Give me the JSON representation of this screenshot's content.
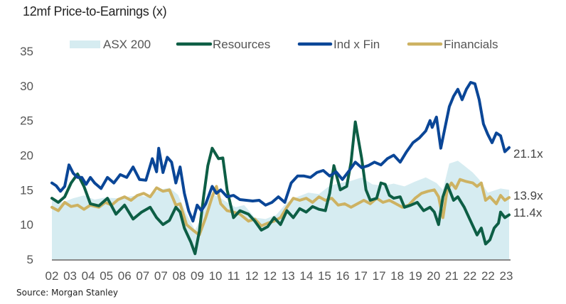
{
  "title": "12mf Price-to-Earnings (x)",
  "source": "Source: Morgan Stanley",
  "colors": {
    "asx200": "#d6ecf1",
    "resources": "#0d5e45",
    "ind_x_fin": "#0a4697",
    "financials": "#cdb262",
    "axis": "#888888",
    "text": "#555555"
  },
  "chart_data": {
    "type": "line",
    "title": "12mf Price-to-Earnings (x)",
    "xlabel": "",
    "ylabel": "",
    "ylim": [
      5,
      35
    ],
    "yticks": [
      5,
      10,
      15,
      20,
      25,
      30,
      35
    ],
    "xlim": [
      2002.0,
      2023.4
    ],
    "xtick_labels": [
      "02",
      "03",
      "04",
      "05",
      "06",
      "07",
      "07",
      "08",
      "09",
      "10",
      "11",
      "12",
      "12",
      "13",
      "14",
      "15",
      "16",
      "17",
      "17",
      "18",
      "19",
      "20",
      "21",
      "22",
      "22",
      "23"
    ],
    "grid": false,
    "legend": {
      "placement": "top",
      "entries": [
        "ASX 200",
        "Resources",
        "Ind x Fin",
        "Financials"
      ]
    },
    "end_labels": {
      "ind_x_fin": "21.1x",
      "financials": "13.9x",
      "resources": "11.4x"
    },
    "series": [
      {
        "name": "ASX 200",
        "key": "asx200",
        "style": "area",
        "points": [
          [
            2002.0,
            13.5
          ],
          [
            2002.5,
            13.2
          ],
          [
            2003.0,
            13.8
          ],
          [
            2003.5,
            14.2
          ],
          [
            2004.0,
            13.6
          ],
          [
            2004.5,
            13.9
          ],
          [
            2005.0,
            13.8
          ],
          [
            2005.5,
            14.0
          ],
          [
            2006.0,
            14.2
          ],
          [
            2006.5,
            14.0
          ],
          [
            2007.0,
            15.0
          ],
          [
            2007.5,
            15.3
          ],
          [
            2007.9,
            14.3
          ],
          [
            2008.3,
            11.5
          ],
          [
            2008.7,
            9.2
          ],
          [
            2009.0,
            11.0
          ],
          [
            2009.4,
            14.5
          ],
          [
            2009.8,
            14.0
          ],
          [
            2010.2,
            13.2
          ],
          [
            2010.6,
            12.5
          ],
          [
            2011.0,
            12.8
          ],
          [
            2011.5,
            11.0
          ],
          [
            2012.0,
            10.8
          ],
          [
            2012.5,
            11.4
          ],
          [
            2013.0,
            13.2
          ],
          [
            2013.5,
            14.0
          ],
          [
            2014.0,
            14.6
          ],
          [
            2014.5,
            14.4
          ],
          [
            2015.0,
            15.6
          ],
          [
            2015.5,
            16.0
          ],
          [
            2016.0,
            16.3
          ],
          [
            2016.5,
            16.8
          ],
          [
            2017.0,
            15.8
          ],
          [
            2017.5,
            15.6
          ],
          [
            2018.0,
            15.9
          ],
          [
            2018.5,
            15.5
          ],
          [
            2019.0,
            16.2
          ],
          [
            2019.5,
            16.8
          ],
          [
            2020.0,
            16.0
          ],
          [
            2020.3,
            15.0
          ],
          [
            2020.6,
            18.8
          ],
          [
            2021.0,
            19.2
          ],
          [
            2021.3,
            18.5
          ],
          [
            2021.7,
            17.5
          ],
          [
            2022.0,
            16.5
          ],
          [
            2022.4,
            14.6
          ],
          [
            2022.8,
            15.0
          ],
          [
            2023.0,
            15.2
          ],
          [
            2023.4,
            15.0
          ]
        ]
      },
      {
        "name": "Resources",
        "key": "resources",
        "style": "line",
        "points": [
          [
            2002.0,
            13.8
          ],
          [
            2002.3,
            13.2
          ],
          [
            2002.6,
            14.0
          ],
          [
            2002.9,
            16.0
          ],
          [
            2003.2,
            17.3
          ],
          [
            2003.5,
            15.5
          ],
          [
            2003.8,
            13.0
          ],
          [
            2004.2,
            12.7
          ],
          [
            2004.6,
            13.8
          ],
          [
            2005.0,
            11.5
          ],
          [
            2005.4,
            12.8
          ],
          [
            2005.8,
            10.8
          ],
          [
            2006.2,
            11.8
          ],
          [
            2006.6,
            12.5
          ],
          [
            2006.9,
            11.0
          ],
          [
            2007.2,
            10.0
          ],
          [
            2007.5,
            10.6
          ],
          [
            2007.8,
            12.5
          ],
          [
            2008.0,
            11.8
          ],
          [
            2008.2,
            9.5
          ],
          [
            2008.5,
            7.5
          ],
          [
            2008.7,
            5.8
          ],
          [
            2008.9,
            9.0
          ],
          [
            2009.1,
            14.0
          ],
          [
            2009.3,
            18.5
          ],
          [
            2009.5,
            21.0
          ],
          [
            2009.8,
            19.5
          ],
          [
            2010.0,
            19.6
          ],
          [
            2010.2,
            15.0
          ],
          [
            2010.5,
            11.0
          ],
          [
            2010.8,
            12.0
          ],
          [
            2011.2,
            11.5
          ],
          [
            2011.5,
            10.5
          ],
          [
            2011.8,
            9.2
          ],
          [
            2012.1,
            9.7
          ],
          [
            2012.4,
            11.0
          ],
          [
            2012.7,
            10.0
          ],
          [
            2013.0,
            12.0
          ],
          [
            2013.3,
            11.0
          ],
          [
            2013.6,
            12.3
          ],
          [
            2013.9,
            11.8
          ],
          [
            2014.2,
            12.6
          ],
          [
            2014.5,
            12.2
          ],
          [
            2014.8,
            12.0
          ],
          [
            2015.0,
            14.5
          ],
          [
            2015.2,
            18.5
          ],
          [
            2015.5,
            15.0
          ],
          [
            2015.8,
            15.5
          ],
          [
            2016.0,
            19.0
          ],
          [
            2016.2,
            24.8
          ],
          [
            2016.5,
            19.5
          ],
          [
            2016.7,
            15.0
          ],
          [
            2016.9,
            13.5
          ],
          [
            2017.2,
            13.8
          ],
          [
            2017.4,
            16.0
          ],
          [
            2017.6,
            15.8
          ],
          [
            2017.8,
            14.2
          ],
          [
            2018.0,
            13.8
          ],
          [
            2018.3,
            14.0
          ],
          [
            2018.5,
            12.5
          ],
          [
            2018.8,
            12.8
          ],
          [
            2019.1,
            13.2
          ],
          [
            2019.4,
            12.0
          ],
          [
            2019.7,
            12.5
          ],
          [
            2019.9,
            11.8
          ],
          [
            2020.1,
            10.0
          ],
          [
            2020.3,
            14.0
          ],
          [
            2020.5,
            15.8
          ],
          [
            2020.8,
            13.5
          ],
          [
            2021.0,
            14.0
          ],
          [
            2021.3,
            12.5
          ],
          [
            2021.6,
            10.5
          ],
          [
            2021.9,
            8.5
          ],
          [
            2022.1,
            9.5
          ],
          [
            2022.3,
            7.2
          ],
          [
            2022.5,
            7.8
          ],
          [
            2022.7,
            9.5
          ],
          [
            2022.9,
            10.2
          ],
          [
            2023.0,
            11.8
          ],
          [
            2023.2,
            11.0
          ],
          [
            2023.4,
            11.4
          ]
        ]
      },
      {
        "name": "Ind x Fin",
        "key": "ind_x_fin",
        "style": "line",
        "points": [
          [
            2002.0,
            16.0
          ],
          [
            2002.2,
            15.6
          ],
          [
            2002.4,
            14.8
          ],
          [
            2002.6,
            15.5
          ],
          [
            2002.8,
            18.6
          ],
          [
            2003.0,
            17.4
          ],
          [
            2003.2,
            16.8
          ],
          [
            2003.4,
            16.8
          ],
          [
            2003.6,
            15.8
          ],
          [
            2003.8,
            16.8
          ],
          [
            2004.0,
            16.0
          ],
          [
            2004.3,
            15.2
          ],
          [
            2004.6,
            16.8
          ],
          [
            2004.9,
            16.0
          ],
          [
            2005.2,
            17.2
          ],
          [
            2005.5,
            16.8
          ],
          [
            2005.8,
            18.3
          ],
          [
            2006.1,
            16.5
          ],
          [
            2006.4,
            16.4
          ],
          [
            2006.7,
            19.5
          ],
          [
            2006.9,
            17.6
          ],
          [
            2007.0,
            21.0
          ],
          [
            2007.2,
            17.5
          ],
          [
            2007.4,
            19.7
          ],
          [
            2007.6,
            19.0
          ],
          [
            2007.8,
            16.0
          ],
          [
            2008.0,
            18.3
          ],
          [
            2008.2,
            14.5
          ],
          [
            2008.4,
            12.0
          ],
          [
            2008.6,
            10.5
          ],
          [
            2008.8,
            12.8
          ],
          [
            2009.0,
            12.0
          ],
          [
            2009.2,
            13.0
          ],
          [
            2009.5,
            15.5
          ],
          [
            2009.7,
            14.5
          ],
          [
            2009.9,
            15.0
          ],
          [
            2010.2,
            14.0
          ],
          [
            2010.5,
            14.2
          ],
          [
            2010.8,
            13.6
          ],
          [
            2011.1,
            13.5
          ],
          [
            2011.4,
            13.4
          ],
          [
            2011.7,
            13.5
          ],
          [
            2012.0,
            12.8
          ],
          [
            2012.3,
            13.2
          ],
          [
            2012.6,
            14.0
          ],
          [
            2012.9,
            13.2
          ],
          [
            2013.2,
            16.0
          ],
          [
            2013.5,
            17.0
          ],
          [
            2013.8,
            17.0
          ],
          [
            2014.1,
            16.8
          ],
          [
            2014.4,
            17.5
          ],
          [
            2014.7,
            17.8
          ],
          [
            2015.0,
            17.0
          ],
          [
            2015.3,
            17.6
          ],
          [
            2015.6,
            16.5
          ],
          [
            2015.9,
            17.7
          ],
          [
            2016.2,
            19.0
          ],
          [
            2016.5,
            18.2
          ],
          [
            2016.8,
            18.5
          ],
          [
            2017.1,
            19.0
          ],
          [
            2017.4,
            18.6
          ],
          [
            2017.7,
            19.5
          ],
          [
            2018.0,
            20.0
          ],
          [
            2018.3,
            19.0
          ],
          [
            2018.6,
            20.5
          ],
          [
            2018.9,
            21.8
          ],
          [
            2019.2,
            22.5
          ],
          [
            2019.5,
            23.5
          ],
          [
            2019.7,
            25.0
          ],
          [
            2019.8,
            24.0
          ],
          [
            2020.0,
            25.5
          ],
          [
            2020.2,
            21.0
          ],
          [
            2020.4,
            24.0
          ],
          [
            2020.6,
            27.0
          ],
          [
            2020.8,
            28.5
          ],
          [
            2021.0,
            29.5
          ],
          [
            2021.2,
            28.0
          ],
          [
            2021.4,
            29.5
          ],
          [
            2021.6,
            30.5
          ],
          [
            2021.8,
            30.3
          ],
          [
            2022.0,
            28.0
          ],
          [
            2022.2,
            24.5
          ],
          [
            2022.4,
            23.0
          ],
          [
            2022.6,
            21.8
          ],
          [
            2022.8,
            23.2
          ],
          [
            2023.0,
            22.8
          ],
          [
            2023.2,
            20.5
          ],
          [
            2023.4,
            21.1
          ]
        ]
      },
      {
        "name": "Financials",
        "key": "financials",
        "style": "line",
        "points": [
          [
            2002.0,
            12.5
          ],
          [
            2002.3,
            12.0
          ],
          [
            2002.6,
            13.2
          ],
          [
            2002.9,
            12.6
          ],
          [
            2003.2,
            12.8
          ],
          [
            2003.5,
            12.2
          ],
          [
            2003.8,
            12.8
          ],
          [
            2004.2,
            12.5
          ],
          [
            2004.5,
            13.2
          ],
          [
            2004.8,
            12.8
          ],
          [
            2005.1,
            13.6
          ],
          [
            2005.4,
            14.0
          ],
          [
            2005.7,
            13.5
          ],
          [
            2006.0,
            14.2
          ],
          [
            2006.3,
            14.5
          ],
          [
            2006.6,
            14.0
          ],
          [
            2006.9,
            15.3
          ],
          [
            2007.2,
            14.8
          ],
          [
            2007.5,
            15.0
          ],
          [
            2007.8,
            12.8
          ],
          [
            2008.0,
            13.0
          ],
          [
            2008.3,
            10.0
          ],
          [
            2008.6,
            9.2
          ],
          [
            2008.9,
            8.5
          ],
          [
            2009.2,
            11.0
          ],
          [
            2009.5,
            14.0
          ],
          [
            2009.7,
            15.5
          ],
          [
            2009.9,
            13.0
          ],
          [
            2010.2,
            12.0
          ],
          [
            2010.5,
            11.8
          ],
          [
            2010.8,
            11.5
          ],
          [
            2011.2,
            10.5
          ],
          [
            2011.5,
            10.8
          ],
          [
            2011.8,
            9.8
          ],
          [
            2012.1,
            10.2
          ],
          [
            2012.4,
            10.5
          ],
          [
            2012.7,
            11.0
          ],
          [
            2013.0,
            12.5
          ],
          [
            2013.3,
            13.8
          ],
          [
            2013.6,
            13.5
          ],
          [
            2013.9,
            13.8
          ],
          [
            2014.2,
            13.2
          ],
          [
            2014.5,
            14.0
          ],
          [
            2014.8,
            13.5
          ],
          [
            2015.1,
            13.8
          ],
          [
            2015.4,
            12.8
          ],
          [
            2015.7,
            13.0
          ],
          [
            2016.0,
            12.5
          ],
          [
            2016.3,
            13.0
          ],
          [
            2016.6,
            13.5
          ],
          [
            2016.9,
            13.0
          ],
          [
            2017.2,
            13.8
          ],
          [
            2017.5,
            13.2
          ],
          [
            2017.8,
            13.5
          ],
          [
            2018.1,
            13.0
          ],
          [
            2018.4,
            12.5
          ],
          [
            2018.7,
            12.8
          ],
          [
            2019.0,
            13.8
          ],
          [
            2019.3,
            14.5
          ],
          [
            2019.6,
            14.8
          ],
          [
            2019.9,
            15.0
          ],
          [
            2020.1,
            14.0
          ],
          [
            2020.3,
            11.0
          ],
          [
            2020.5,
            15.0
          ],
          [
            2020.7,
            16.0
          ],
          [
            2020.9,
            15.2
          ],
          [
            2021.1,
            16.5
          ],
          [
            2021.4,
            16.2
          ],
          [
            2021.7,
            16.0
          ],
          [
            2021.9,
            15.5
          ],
          [
            2022.1,
            16.0
          ],
          [
            2022.3,
            13.5
          ],
          [
            2022.5,
            14.0
          ],
          [
            2022.8,
            13.0
          ],
          [
            2023.0,
            14.2
          ],
          [
            2023.2,
            13.5
          ],
          [
            2023.4,
            13.9
          ]
        ]
      }
    ]
  }
}
